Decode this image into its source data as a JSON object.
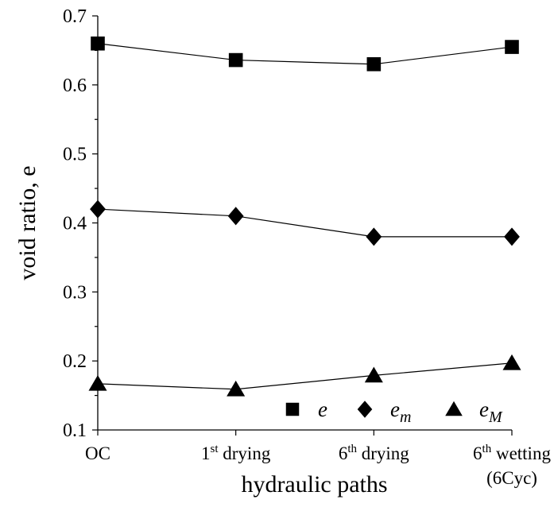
{
  "chart_data": {
    "type": "line",
    "ylabel": "void ratio, e",
    "xlabel": "hydraulic paths",
    "ylim": [
      0.1,
      0.7
    ],
    "yticks": [
      "0.1",
      "0.2",
      "0.3",
      "0.4",
      "0.5",
      "0.6",
      "0.7"
    ],
    "categories": [
      {
        "main": "OC",
        "sup": "",
        "rest": "",
        "line2": ""
      },
      {
        "main": "1",
        "sup": "st",
        "rest": " drying",
        "line2": ""
      },
      {
        "main": "6",
        "sup": "th",
        "rest": " drying",
        "line2": ""
      },
      {
        "main": "6",
        "sup": "th",
        "rest": " wetting",
        "line2": "(6Cyc)"
      }
    ],
    "series": [
      {
        "key": "e",
        "name": "e",
        "sub": "",
        "marker": "square",
        "values": [
          0.66,
          0.636,
          0.63,
          0.655
        ]
      },
      {
        "key": "em",
        "name": "e",
        "sub": "m",
        "marker": "diamond",
        "values": [
          0.42,
          0.41,
          0.38,
          0.38
        ]
      },
      {
        "key": "eM",
        "name": "e",
        "sub": "M",
        "marker": "triangle",
        "values": [
          0.167,
          0.159,
          0.179,
          0.197
        ]
      }
    ],
    "legend_position": "bottom-right",
    "grid": false
  }
}
